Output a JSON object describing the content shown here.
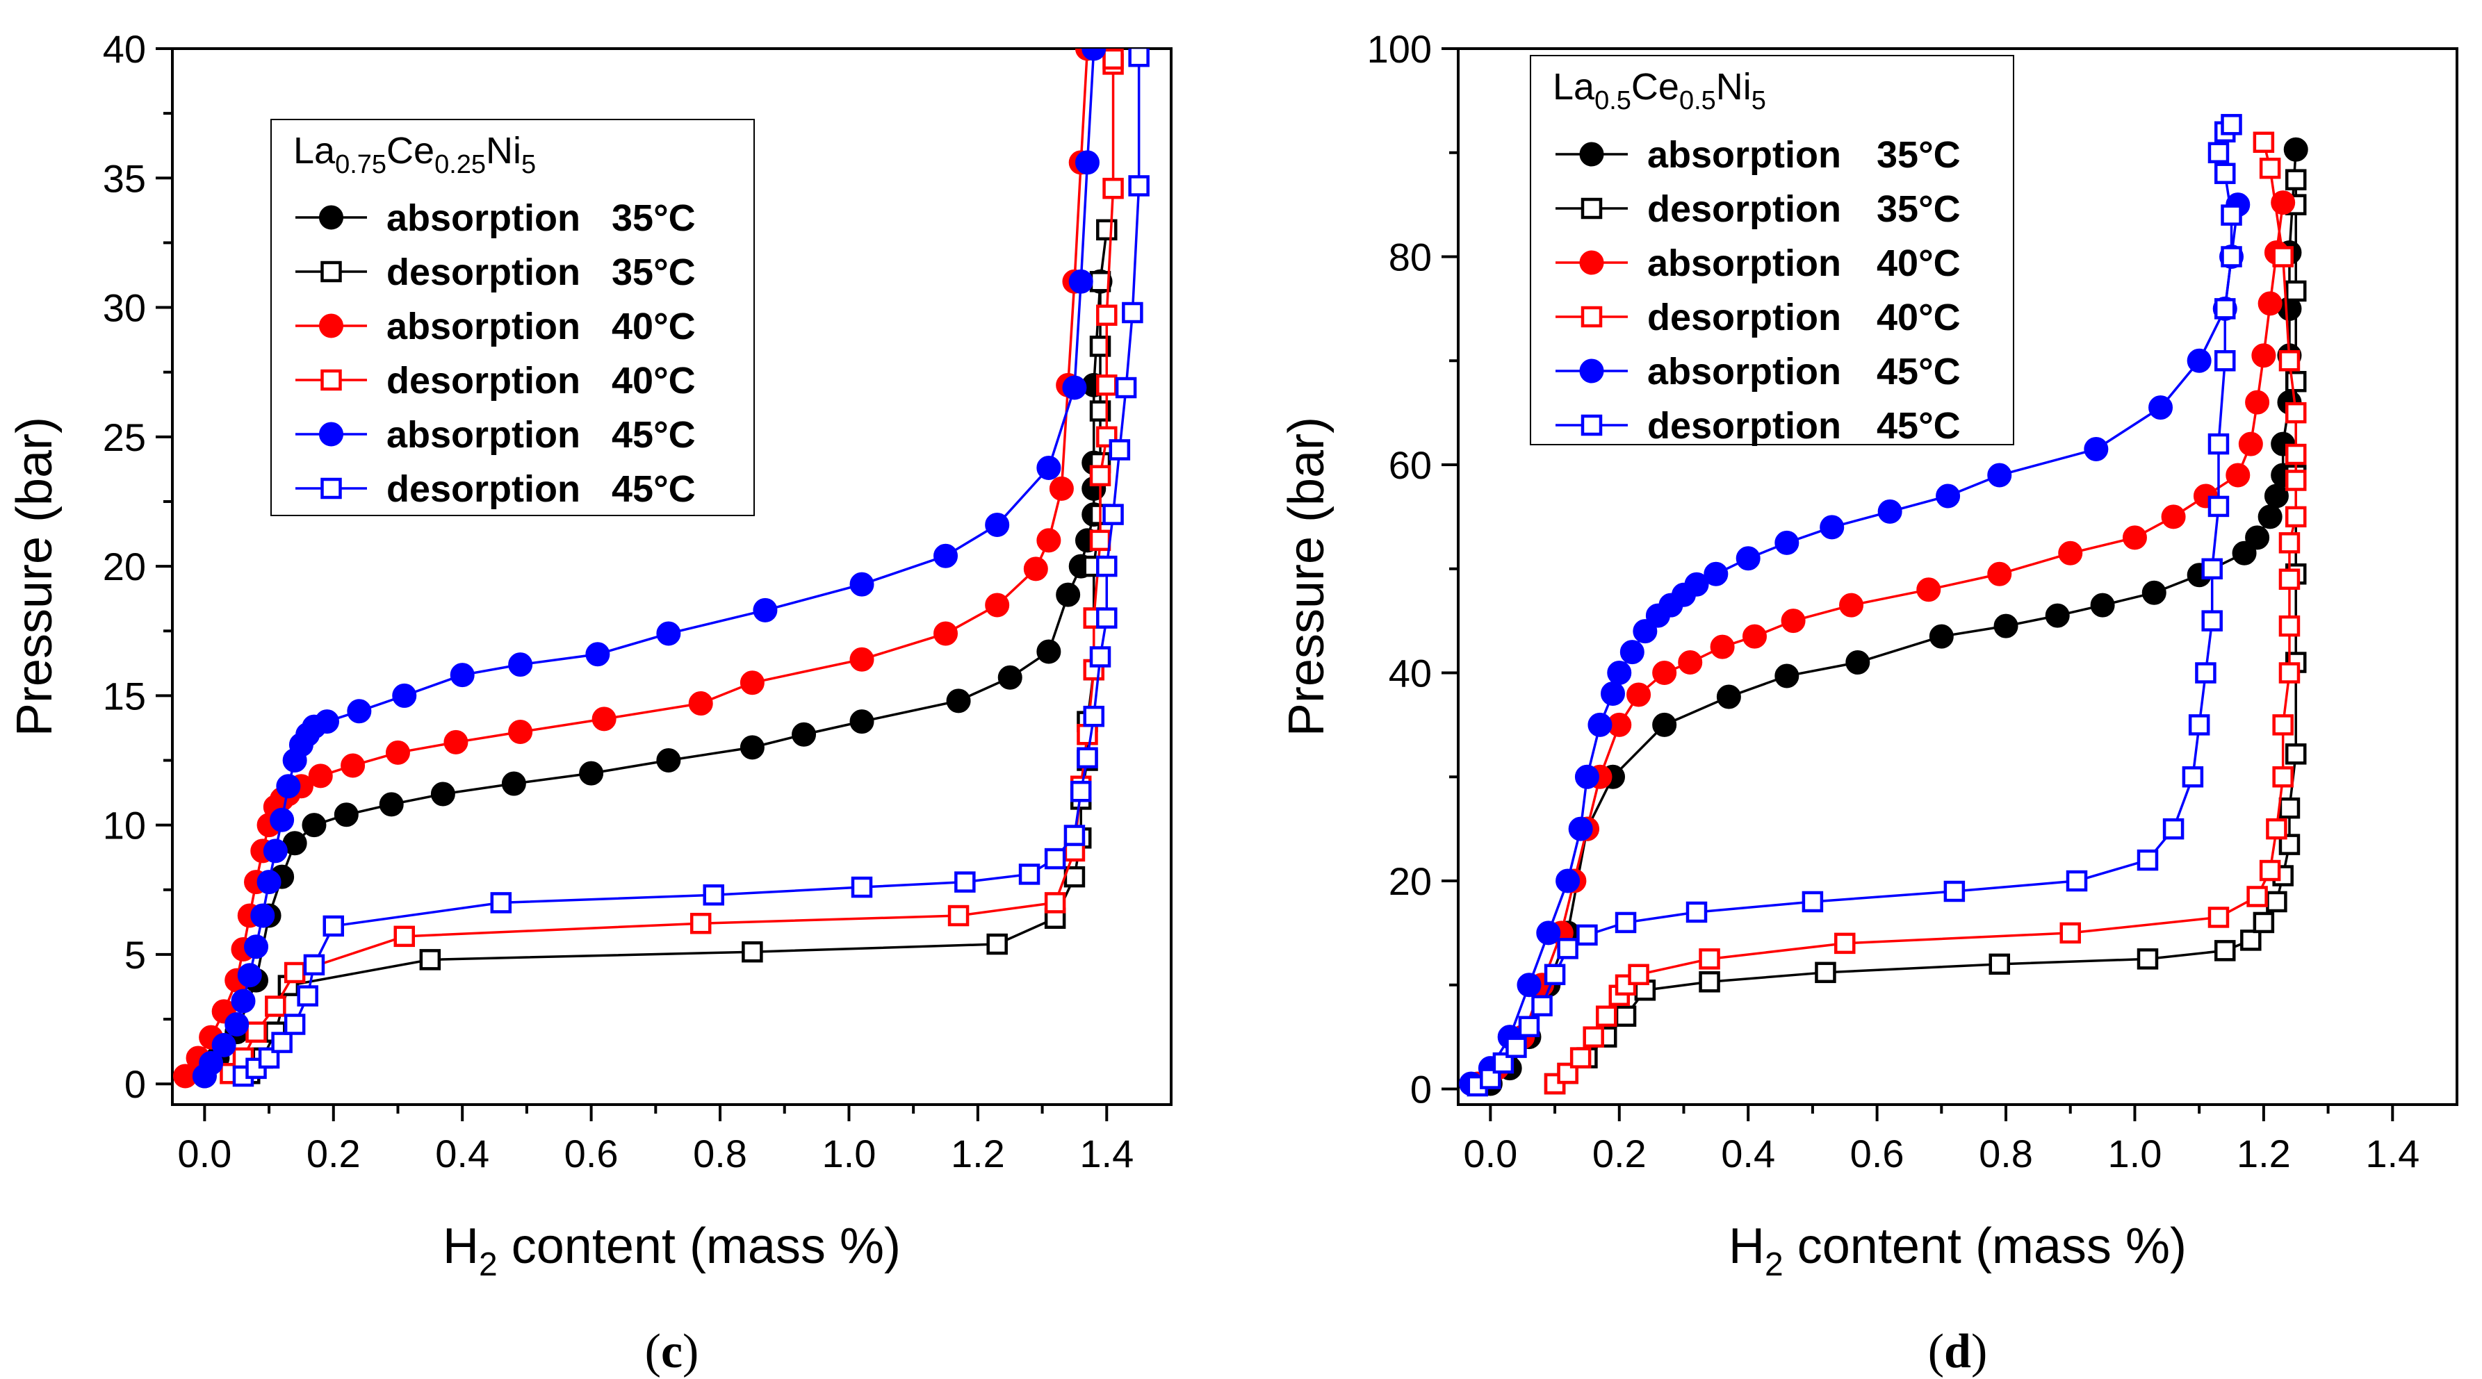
{
  "chart_data": [
    {
      "type": "scatter",
      "panel": "c",
      "caption_open": "(",
      "caption_letter": "c",
      "caption_close": ")",
      "xlabel_pre": "H",
      "xlabel_sub": "2",
      "xlabel_post": " content (mass %)",
      "ylabel": "Pressure (bar)",
      "xlim": [
        -0.05,
        1.5
      ],
      "ylim": [
        -0.8,
        40
      ],
      "xticks": [
        0.0,
        0.2,
        0.4,
        0.6,
        0.8,
        1.0,
        1.2,
        1.4
      ],
      "xtick_labels": [
        "0.0",
        "0.2",
        "0.4",
        "0.6",
        "0.8",
        "1.0",
        "1.2",
        "1.4"
      ],
      "yticks": [
        0,
        5,
        10,
        15,
        20,
        25,
        30,
        35,
        40
      ],
      "ytick_labels": [
        "0",
        "5",
        "10",
        "15",
        "20",
        "25",
        "30",
        "35",
        "40"
      ],
      "legend": {
        "placement": "top-left",
        "title_parts": [
          {
            "t": "La",
            "s": false
          },
          {
            "t": "0.75",
            "s": true
          },
          {
            "t": "Ce",
            "s": false
          },
          {
            "t": "0.25",
            "s": true
          },
          {
            "t": "Ni",
            "s": false
          },
          {
            "t": "5",
            "s": true
          }
        ]
      },
      "series": [
        {
          "name": "absorption",
          "temp": "35°C",
          "color": "#000000",
          "marker": "circle",
          "filled": true,
          "x": [
            0.0,
            0.02,
            0.05,
            0.08,
            0.1,
            0.12,
            0.14,
            0.17,
            0.22,
            0.29,
            0.37,
            0.48,
            0.6,
            0.72,
            0.85,
            0.93,
            1.02,
            1.17,
            1.25,
            1.31,
            1.34,
            1.36,
            1.37,
            1.38,
            1.38,
            1.38,
            1.38,
            1.39
          ],
          "y": [
            0.3,
            1.0,
            2.0,
            4.0,
            6.5,
            8.0,
            9.3,
            10.0,
            10.4,
            10.8,
            11.2,
            11.6,
            12.0,
            12.5,
            13.0,
            13.5,
            14.0,
            14.8,
            15.7,
            16.7,
            18.9,
            20.0,
            21.0,
            22.0,
            23.0,
            24.0,
            27.0,
            31.0
          ]
        },
        {
          "name": "desorption",
          "temp": "35°C",
          "color": "#000000",
          "marker": "square",
          "filled": false,
          "x": [
            0.07,
            0.09,
            0.11,
            0.13,
            0.35,
            0.85,
            1.23,
            1.32,
            1.35,
            1.36,
            1.36,
            1.37,
            1.37,
            1.38,
            1.38,
            1.38,
            1.39,
            1.39,
            1.39,
            1.39,
            1.39,
            1.4
          ],
          "y": [
            0.4,
            1.0,
            2.0,
            3.8,
            4.8,
            5.1,
            5.4,
            6.4,
            8.0,
            9.5,
            11.0,
            12.5,
            14.0,
            16.0,
            18.0,
            20.0,
            22.0,
            24.0,
            26.0,
            28.5,
            31.0,
            33.0
          ]
        },
        {
          "name": "absorption",
          "temp": "40°C",
          "color": "#ff0000",
          "marker": "circle",
          "filled": true,
          "x": [
            -0.03,
            -0.01,
            0.01,
            0.03,
            0.05,
            0.06,
            0.07,
            0.08,
            0.09,
            0.1,
            0.11,
            0.12,
            0.13,
            0.15,
            0.18,
            0.23,
            0.3,
            0.39,
            0.49,
            0.62,
            0.77,
            0.85,
            1.02,
            1.15,
            1.23,
            1.29,
            1.31,
            1.33,
            1.34,
            1.35,
            1.36,
            1.37
          ],
          "y": [
            0.3,
            1.0,
            1.8,
            2.8,
            4.0,
            5.2,
            6.5,
            7.8,
            9.0,
            10.0,
            10.7,
            11.0,
            11.2,
            11.5,
            11.9,
            12.3,
            12.8,
            13.2,
            13.6,
            14.1,
            14.7,
            15.5,
            16.4,
            17.4,
            18.5,
            19.9,
            21.0,
            23.0,
            27.0,
            31.0,
            35.6,
            40.0
          ]
        },
        {
          "name": "desorption",
          "temp": "40°C",
          "color": "#ff0000",
          "marker": "square",
          "filled": false,
          "x": [
            0.04,
            0.06,
            0.08,
            0.11,
            0.14,
            0.31,
            0.77,
            1.17,
            1.32,
            1.35,
            1.36,
            1.37,
            1.38,
            1.38,
            1.39,
            1.39,
            1.4,
            1.4,
            1.4,
            1.41,
            1.41,
            1.41
          ],
          "y": [
            0.4,
            1.0,
            2.0,
            3.0,
            4.3,
            5.7,
            6.2,
            6.5,
            7.0,
            9.0,
            11.5,
            13.5,
            16.0,
            18.0,
            21.0,
            23.5,
            25.0,
            27.0,
            29.7,
            34.6,
            39.4,
            39.6
          ]
        },
        {
          "name": "absorption",
          "temp": "45°C",
          "color": "#0000ff",
          "marker": "circle",
          "filled": true,
          "x": [
            0.0,
            0.01,
            0.03,
            0.05,
            0.06,
            0.07,
            0.08,
            0.09,
            0.1,
            0.11,
            0.12,
            0.13,
            0.14,
            0.15,
            0.16,
            0.17,
            0.19,
            0.24,
            0.31,
            0.4,
            0.49,
            0.61,
            0.72,
            0.87,
            1.02,
            1.15,
            1.23,
            1.31,
            1.35,
            1.36,
            1.37,
            1.38
          ],
          "y": [
            0.3,
            0.8,
            1.5,
            2.3,
            3.2,
            4.2,
            5.3,
            6.5,
            7.8,
            9.0,
            10.2,
            11.5,
            12.5,
            13.1,
            13.5,
            13.8,
            14.0,
            14.4,
            15.0,
            15.8,
            16.2,
            16.6,
            17.4,
            18.3,
            19.3,
            20.4,
            21.6,
            23.8,
            26.9,
            31.0,
            35.6,
            40.0
          ]
        },
        {
          "name": "desorption",
          "temp": "45°C",
          "color": "#0000ff",
          "marker": "square",
          "filled": false,
          "x": [
            0.06,
            0.08,
            0.1,
            0.12,
            0.14,
            0.16,
            0.17,
            0.2,
            0.46,
            0.79,
            1.02,
            1.18,
            1.28,
            1.32,
            1.35,
            1.36,
            1.37,
            1.38,
            1.39,
            1.4,
            1.4,
            1.41,
            1.42,
            1.43,
            1.44,
            1.45,
            1.45
          ],
          "y": [
            0.3,
            0.6,
            1.0,
            1.6,
            2.3,
            3.4,
            4.6,
            6.1,
            7.0,
            7.3,
            7.6,
            7.8,
            8.1,
            8.7,
            9.6,
            11.3,
            12.6,
            14.2,
            16.5,
            18.0,
            20.0,
            22.0,
            24.5,
            26.9,
            29.8,
            34.7,
            39.7
          ]
        }
      ]
    },
    {
      "type": "scatter",
      "panel": "d",
      "caption_open": "(",
      "caption_letter": "d",
      "caption_close": ")",
      "xlabel_pre": "H",
      "xlabel_sub": "2",
      "xlabel_post": " content (mass %)",
      "ylabel": "Pressure (bar)",
      "xlim": [
        -0.05,
        1.5
      ],
      "ylim": [
        -1.5,
        100
      ],
      "xticks": [
        0.0,
        0.2,
        0.4,
        0.6,
        0.8,
        1.0,
        1.2,
        1.4
      ],
      "xtick_labels": [
        "0.0",
        "0.2",
        "0.4",
        "0.6",
        "0.8",
        "1.0",
        "1.2",
        "1.4"
      ],
      "yticks": [
        0,
        20,
        40,
        60,
        80,
        100
      ],
      "ytick_labels": [
        "0",
        "20",
        "40",
        "60",
        "80",
        "100"
      ],
      "legend": {
        "placement": "top-left",
        "title_parts": [
          {
            "t": "La",
            "s": false
          },
          {
            "t": "0.5",
            "s": true
          },
          {
            "t": "Ce",
            "s": false
          },
          {
            "t": "0.5",
            "s": true
          },
          {
            "t": "Ni",
            "s": false
          },
          {
            "t": "5",
            "s": true
          }
        ]
      },
      "series": [
        {
          "name": "absorption",
          "temp": "35°C",
          "color": "#000000",
          "marker": "circle",
          "filled": true,
          "x": [
            0.0,
            0.03,
            0.06,
            0.09,
            0.12,
            0.15,
            0.19,
            0.27,
            0.37,
            0.46,
            0.57,
            0.7,
            0.8,
            0.88,
            0.95,
            1.03,
            1.1,
            1.17,
            1.19,
            1.21,
            1.22,
            1.23,
            1.23,
            1.24,
            1.24,
            1.24,
            1.24,
            1.25
          ],
          "y": [
            0.5,
            2.0,
            5.0,
            10.0,
            15.0,
            25.0,
            30.0,
            35.0,
            37.7,
            39.7,
            41.0,
            43.5,
            44.5,
            45.5,
            46.5,
            47.7,
            49.4,
            51.5,
            53.0,
            55.0,
            57.0,
            59.0,
            62.0,
            66.0,
            70.5,
            75.0,
            80.4,
            90.3
          ]
        },
        {
          "name": "desorption",
          "temp": "35°C",
          "color": "#000000",
          "marker": "square",
          "filled": false,
          "x": [
            0.1,
            0.12,
            0.15,
            0.18,
            0.21,
            0.24,
            0.34,
            0.52,
            0.79,
            1.02,
            1.14,
            1.18,
            1.2,
            1.22,
            1.23,
            1.24,
            1.24,
            1.25,
            1.25,
            1.25,
            1.25,
            1.25,
            1.25,
            1.25,
            1.25
          ],
          "y": [
            0.5,
            1.5,
            3.0,
            5.0,
            7.0,
            9.5,
            10.3,
            11.2,
            12.0,
            12.5,
            13.3,
            14.3,
            16.0,
            18.0,
            20.5,
            23.5,
            27.0,
            32.2,
            41.0,
            49.5,
            59.0,
            68.0,
            76.7,
            85.0,
            87.4
          ]
        },
        {
          "name": "absorption",
          "temp": "40°C",
          "color": "#ff0000",
          "marker": "circle",
          "filled": true,
          "x": [
            -0.02,
            0.01,
            0.05,
            0.08,
            0.11,
            0.13,
            0.15,
            0.17,
            0.2,
            0.23,
            0.27,
            0.31,
            0.36,
            0.41,
            0.47,
            0.56,
            0.68,
            0.79,
            0.9,
            1.0,
            1.06,
            1.11,
            1.16,
            1.18,
            1.19,
            1.2,
            1.21,
            1.22,
            1.23
          ],
          "y": [
            0.5,
            2.0,
            5.0,
            10.0,
            15.0,
            20.0,
            25.0,
            30.0,
            35.0,
            37.9,
            40.0,
            41.0,
            42.5,
            43.5,
            45.0,
            46.5,
            48.0,
            49.5,
            51.5,
            53.0,
            55.0,
            57.0,
            59.0,
            62.0,
            66.0,
            70.5,
            75.5,
            80.4,
            85.2
          ]
        },
        {
          "name": "desorption",
          "temp": "40°C",
          "color": "#ff0000",
          "marker": "square",
          "filled": false,
          "x": [
            0.1,
            0.12,
            0.14,
            0.16,
            0.18,
            0.2,
            0.21,
            0.23,
            0.34,
            0.55,
            0.9,
            1.13,
            1.19,
            1.21,
            1.22,
            1.23,
            1.23,
            1.24,
            1.24,
            1.24,
            1.24,
            1.25,
            1.25,
            1.25,
            1.25,
            1.24,
            1.23,
            1.21,
            1.2
          ],
          "y": [
            0.5,
            1.5,
            3.0,
            5.0,
            7.0,
            9.0,
            10.0,
            11.0,
            12.5,
            14.0,
            15.0,
            16.5,
            18.5,
            21.0,
            25.0,
            30.0,
            35.0,
            40.0,
            44.5,
            49.0,
            52.5,
            55.0,
            58.5,
            61.0,
            65.0,
            70.0,
            80.0,
            88.5,
            91.0
          ]
        },
        {
          "name": "absorption",
          "temp": "45°C",
          "color": "#0000ff",
          "marker": "circle",
          "filled": true,
          "x": [
            -0.03,
            0.0,
            0.03,
            0.06,
            0.09,
            0.12,
            0.14,
            0.15,
            0.17,
            0.19,
            0.2,
            0.22,
            0.24,
            0.26,
            0.28,
            0.3,
            0.32,
            0.35,
            0.4,
            0.46,
            0.53,
            0.62,
            0.71,
            0.79,
            0.94,
            1.04,
            1.1,
            1.14,
            1.15,
            1.16
          ],
          "y": [
            0.5,
            2.0,
            5.0,
            10.0,
            15.0,
            20.0,
            25.0,
            30.0,
            35.0,
            38.0,
            40.0,
            42.0,
            44.0,
            45.5,
            46.5,
            47.5,
            48.5,
            49.5,
            51.0,
            52.5,
            54.0,
            55.5,
            57.0,
            59.0,
            61.5,
            65.5,
            70.0,
            75.0,
            80.0,
            85.0
          ]
        },
        {
          "name": "desorption",
          "temp": "45°C",
          "color": "#0000ff",
          "marker": "square",
          "filled": false,
          "x": [
            -0.02,
            0.0,
            0.02,
            0.04,
            0.06,
            0.08,
            0.1,
            0.12,
            0.15,
            0.21,
            0.32,
            0.5,
            0.72,
            0.91,
            1.02,
            1.06,
            1.09,
            1.1,
            1.11,
            1.12,
            1.12,
            1.13,
            1.13,
            1.14,
            1.14,
            1.15,
            1.15,
            1.14,
            1.13,
            1.14,
            1.15
          ],
          "y": [
            0.3,
            1.0,
            2.5,
            4.0,
            6.0,
            8.0,
            11.0,
            13.5,
            14.8,
            16.0,
            17.0,
            18.0,
            19.0,
            20.0,
            22.0,
            25.0,
            30.0,
            35.0,
            40.0,
            45.0,
            50.0,
            56.0,
            62.0,
            70.0,
            75.0,
            80.0,
            84.0,
            88.0,
            90.0,
            92.0,
            92.7
          ]
        }
      ]
    }
  ]
}
